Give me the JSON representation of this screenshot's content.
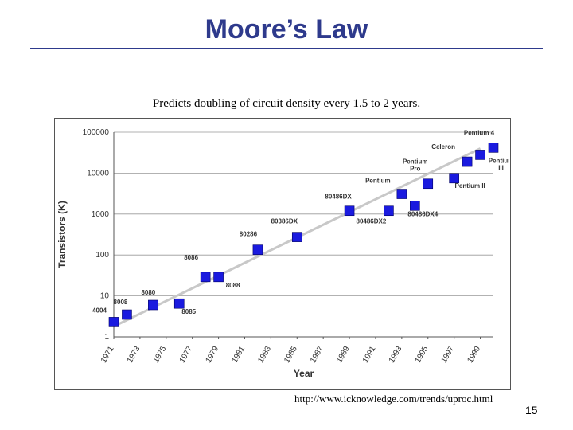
{
  "slide": {
    "title": "Moore’s Law",
    "subtitle": "Predicts doubling of circuit density every 1.5 to 2 years.",
    "source": "http://www.icknowledge.com/trends/uproc.html",
    "page_number": "15",
    "accent": "#2e3a8c"
  },
  "chart_data": {
    "type": "scatter",
    "xlabel": "Year",
    "ylabel": "Transistors (K)",
    "yscale": "log",
    "ylim": [
      1,
      100000
    ],
    "xlim": [
      1971,
      2000
    ],
    "yticks": [
      "1",
      "10",
      "100",
      "1000",
      "10000",
      "100000"
    ],
    "xticks": [
      "1971",
      "1973",
      "1975",
      "1977",
      "1979",
      "1981",
      "1983",
      "1985",
      "1987",
      "1989",
      "1991",
      "1993",
      "1995",
      "1997",
      "1999"
    ],
    "grid": "horizontal",
    "marker_color": "#1a1adf",
    "trend_color": "#c8c8c8",
    "trend": {
      "x": [
        1971,
        1999
      ],
      "y": [
        1.8,
        40000
      ]
    },
    "points": [
      {
        "label": "4004",
        "x": 1971,
        "y": 2.3
      },
      {
        "label": "8008",
        "x": 1972,
        "y": 3.5
      },
      {
        "label": "8080",
        "x": 1974,
        "y": 6
      },
      {
        "label": "8085",
        "x": 1976,
        "y": 6.5
      },
      {
        "label": "8086",
        "x": 1978,
        "y": 29
      },
      {
        "label": "8088",
        "x": 1979,
        "y": 29
      },
      {
        "label": "80286",
        "x": 1982,
        "y": 134
      },
      {
        "label": "80386DX",
        "x": 1985,
        "y": 275
      },
      {
        "label": "80486DX",
        "x": 1989,
        "y": 1200
      },
      {
        "label": "80486DX2",
        "x": 1992,
        "y": 1200
      },
      {
        "label": "Pentium",
        "x": 1993,
        "y": 3100
      },
      {
        "label": "80486DX4",
        "x": 1994,
        "y": 1600
      },
      {
        "label": "Pentium Pro",
        "x": 1995,
        "y": 5500
      },
      {
        "label": "Pentium II",
        "x": 1997,
        "y": 7500
      },
      {
        "label": "Celeron",
        "x": 1998,
        "y": 19000
      },
      {
        "label": "Pentium III",
        "x": 1999,
        "y": 28000
      },
      {
        "label": "Pentium 4",
        "x": 2000,
        "y": 42000
      }
    ]
  }
}
